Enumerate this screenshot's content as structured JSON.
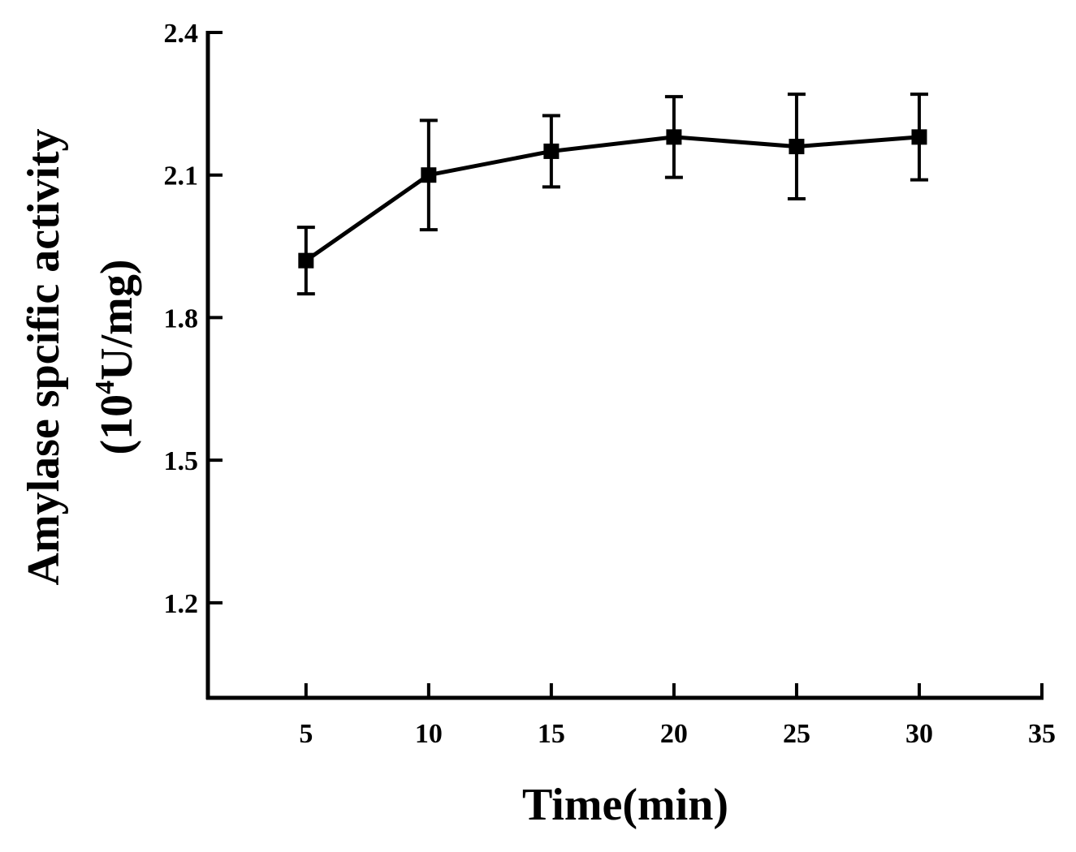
{
  "chart_data": {
    "type": "line",
    "title": "",
    "xlabel": "Time(min)",
    "ylabel_line1": "Amylase spcific activity",
    "ylabel_line2_prefix": "(10",
    "ylabel_line2_sup": "4",
    "ylabel_line2_suffix": "U/mg)",
    "xlim": [
      1,
      35
    ],
    "ylim": [
      1.0,
      2.4
    ],
    "xticks": [
      5,
      10,
      15,
      20,
      25,
      30,
      35
    ],
    "xtick_labels": [
      "5",
      "10",
      "15",
      "20",
      "25",
      "30",
      "35"
    ],
    "yticks": [
      1.2,
      1.5,
      1.8,
      2.1,
      2.4
    ],
    "ytick_labels": [
      "1.2",
      "1.5",
      "1.8",
      "2.1",
      "2.4"
    ],
    "grid": false,
    "legend": "none",
    "color": "#000000",
    "marker": "square",
    "series": [
      {
        "x": [
          5,
          10,
          15,
          20,
          25,
          30
        ],
        "values": [
          1.92,
          2.1,
          2.15,
          2.18,
          2.16,
          2.18
        ],
        "errors": [
          0.07,
          0.115,
          0.075,
          0.085,
          0.11,
          0.09
        ]
      }
    ]
  }
}
